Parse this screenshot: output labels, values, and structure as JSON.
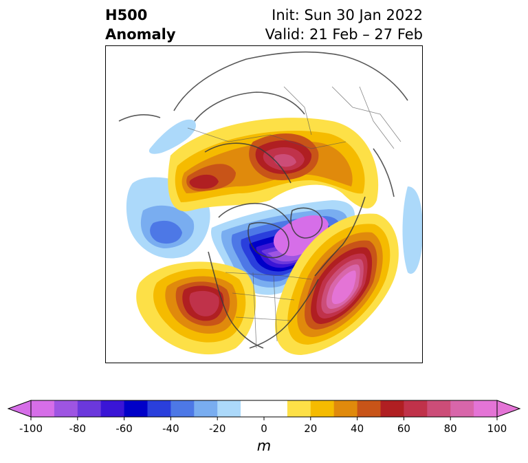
{
  "title": {
    "left_line1": "H500",
    "left_line2": "Anomaly",
    "right_line1": "Init: Sun 30 Jan 2022",
    "right_line2": "Valid: 21 Feb – 27 Feb"
  },
  "colorbar": {
    "units": "m",
    "range": [
      -100,
      100
    ],
    "ticks": [
      "-100",
      "-80",
      "-60",
      "-40",
      "-20",
      "0",
      "20",
      "40",
      "60",
      "80",
      "100"
    ],
    "colors": [
      "#d66ee8",
      "#9e55e2",
      "#6b38dc",
      "#3a15d6",
      "#0000c8",
      "#2a3fdc",
      "#4d78e6",
      "#79adf0",
      "#acd9fa",
      "#ffffff",
      "#ffffff",
      "#fde047",
      "#f5bb00",
      "#e08a0c",
      "#c85418",
      "#b01f22",
      "#c0324a",
      "#cc4d78",
      "#d866aa",
      "#e474d6"
    ]
  },
  "map": {
    "region": "North America / Arctic polar stereographic",
    "features": [
      {
        "label": "positive anomaly",
        "value_max": 100
      },
      {
        "label": "negative anomaly",
        "value_min": -100
      }
    ]
  }
}
